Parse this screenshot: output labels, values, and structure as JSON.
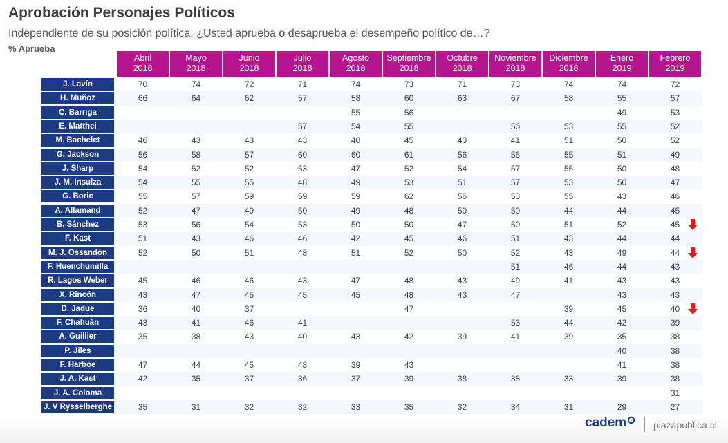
{
  "title": "Aprobación Personajes Políticos",
  "subtitle": "Independiente de su posición política, ¿Usted aprueba o desaprueba el desempeño político de…?",
  "unit_label": "% Aprueba",
  "chart_data": {
    "type": "table",
    "columns": [
      {
        "month": "Abril",
        "year": "2018"
      },
      {
        "month": "Mayo",
        "year": "2018"
      },
      {
        "month": "Junio",
        "year": "2018"
      },
      {
        "month": "Julio",
        "year": "2018"
      },
      {
        "month": "Agosto",
        "year": "2018"
      },
      {
        "month": "Septiembre",
        "year": "2018"
      },
      {
        "month": "Octubre",
        "year": "2018"
      },
      {
        "month": "Noviembre",
        "year": "2018"
      },
      {
        "month": "Diciembre",
        "year": "2018"
      },
      {
        "month": "Enero",
        "year": "2019"
      },
      {
        "month": "Febrero",
        "year": "2019"
      }
    ],
    "rows": [
      {
        "name": "J. Lavín",
        "values": [
          "70",
          "74",
          "72",
          "71",
          "74",
          "73",
          "71",
          "73",
          "74",
          "74",
          "72"
        ]
      },
      {
        "name": "H. Muñoz",
        "values": [
          "66",
          "64",
          "62",
          "57",
          "58",
          "60",
          "63",
          "67",
          "58",
          "55",
          "57"
        ]
      },
      {
        "name": "C. Barriga",
        "values": [
          "",
          "",
          "",
          "",
          "55",
          "56",
          "",
          "",
          "",
          "49",
          "53"
        ]
      },
      {
        "name": "E. Matthei",
        "values": [
          "",
          "",
          "",
          "57",
          "54",
          "55",
          "",
          "56",
          "53",
          "55",
          "52"
        ]
      },
      {
        "name": "M. Bachelet",
        "values": [
          "46",
          "43",
          "43",
          "43",
          "40",
          "45",
          "40",
          "41",
          "51",
          "50",
          "52"
        ]
      },
      {
        "name": "G. Jackson",
        "values": [
          "56",
          "58",
          "57",
          "60",
          "60",
          "61",
          "56",
          "56",
          "55",
          "51",
          "49"
        ]
      },
      {
        "name": "J. Sharp",
        "values": [
          "54",
          "52",
          "52",
          "53",
          "47",
          "52",
          "54",
          "57",
          "55",
          "50",
          "48"
        ]
      },
      {
        "name": "J. M. Insulza",
        "values": [
          "54",
          "55",
          "55",
          "48",
          "49",
          "53",
          "51",
          "57",
          "53",
          "50",
          "47"
        ]
      },
      {
        "name": "G. Boric",
        "values": [
          "55",
          "57",
          "59",
          "59",
          "59",
          "62",
          "56",
          "53",
          "55",
          "43",
          "46"
        ]
      },
      {
        "name": "A. Allamand",
        "values": [
          "52",
          "47",
          "49",
          "50",
          "49",
          "48",
          "50",
          "50",
          "44",
          "44",
          "45"
        ]
      },
      {
        "name": "B. Sánchez",
        "values": [
          "53",
          "56",
          "54",
          "53",
          "50",
          "50",
          "47",
          "50",
          "51",
          "52",
          "45"
        ],
        "trend": "down"
      },
      {
        "name": "F. Kast",
        "values": [
          "51",
          "43",
          "46",
          "46",
          "42",
          "45",
          "46",
          "51",
          "43",
          "44",
          "44"
        ]
      },
      {
        "name": "M. J. Ossandón",
        "values": [
          "52",
          "50",
          "51",
          "48",
          "51",
          "52",
          "50",
          "52",
          "43",
          "49",
          "44"
        ],
        "trend": "down"
      },
      {
        "name": "F. Huenchumilla",
        "values": [
          "",
          "",
          "",
          "",
          "",
          "",
          "",
          "51",
          "46",
          "44",
          "43"
        ]
      },
      {
        "name": "R. Lagos Weber",
        "values": [
          "45",
          "46",
          "46",
          "43",
          "47",
          "48",
          "43",
          "49",
          "41",
          "43",
          "43"
        ]
      },
      {
        "name": "X. Rincón",
        "values": [
          "43",
          "47",
          "45",
          "45",
          "45",
          "48",
          "43",
          "47",
          "",
          "43",
          "43"
        ]
      },
      {
        "name": "D. Jadue",
        "values": [
          "36",
          "40",
          "37",
          "",
          "",
          "47",
          "",
          "",
          "39",
          "45",
          "40"
        ],
        "trend": "down"
      },
      {
        "name": "F. Chahuán",
        "values": [
          "43",
          "41",
          "46",
          "41",
          "",
          "",
          "",
          "53",
          "44",
          "42",
          "39"
        ]
      },
      {
        "name": "A. Guillier",
        "values": [
          "35",
          "38",
          "43",
          "40",
          "43",
          "42",
          "39",
          "41",
          "39",
          "35",
          "38"
        ]
      },
      {
        "name": "P. Jiles",
        "values": [
          "",
          "",
          "",
          "",
          "",
          "",
          "",
          "",
          "",
          "40",
          "38"
        ]
      },
      {
        "name": "F. Harboe",
        "values": [
          "47",
          "44",
          "45",
          "48",
          "39",
          "43",
          "",
          "",
          "",
          "41",
          "38"
        ]
      },
      {
        "name": "J. A. Kast",
        "values": [
          "42",
          "35",
          "37",
          "36",
          "37",
          "39",
          "38",
          "38",
          "33",
          "39",
          "38"
        ]
      },
      {
        "name": "J. A. Coloma",
        "values": [
          "",
          "",
          "",
          "",
          "",
          "",
          "",
          "",
          "",
          "",
          "31"
        ]
      },
      {
        "name": "J. V Rysselberghe",
        "values": [
          "35",
          "31",
          "32",
          "32",
          "33",
          "35",
          "32",
          "34",
          "31",
          "29",
          "27"
        ]
      }
    ]
  },
  "colors": {
    "header_bg": "#b5158e",
    "name_bg": "#1d3b82",
    "arrow": "#e8141b"
  },
  "footer": {
    "logo": "cadem",
    "site": "plazapublica.cl"
  }
}
